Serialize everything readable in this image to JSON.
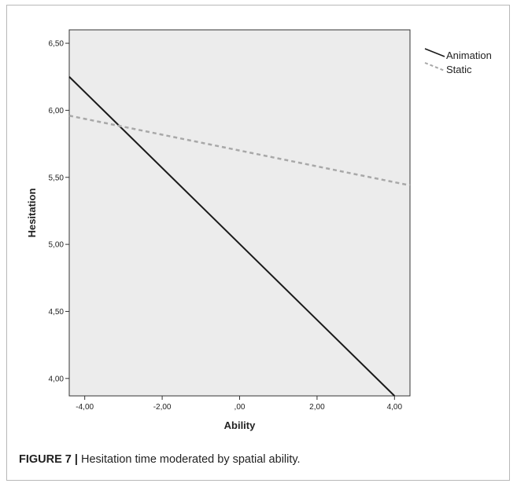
{
  "chart_data": {
    "type": "line",
    "xlabel": "Ability",
    "ylabel": "Hesitation",
    "xlim": [
      -4.4,
      4.4
    ],
    "ylim": [
      3.87,
      6.6
    ],
    "x_ticks": [
      "-4,00",
      "-2,00",
      ",00",
      "2,00",
      "4,00"
    ],
    "y_ticks": [
      "4,00",
      "4,50",
      "5,00",
      "5,50",
      "6,00",
      "6,50"
    ],
    "grid": false,
    "legend_position": "top-right outside",
    "series": [
      {
        "name": "Animation",
        "style": "solid",
        "color": "#1a1a1a",
        "x": [
          -4.4,
          4.0
        ],
        "y": [
          6.25,
          3.87
        ]
      },
      {
        "name": "Static",
        "style": "dashed",
        "color": "#a8a8a8",
        "x": [
          -4.4,
          4.4
        ],
        "y": [
          5.96,
          5.44
        ]
      }
    ]
  },
  "caption": {
    "label": "FIGURE 7 |",
    "text": " Hesitation time moderated by spatial ability."
  },
  "colors": {
    "plot_bg": "#ececec"
  }
}
